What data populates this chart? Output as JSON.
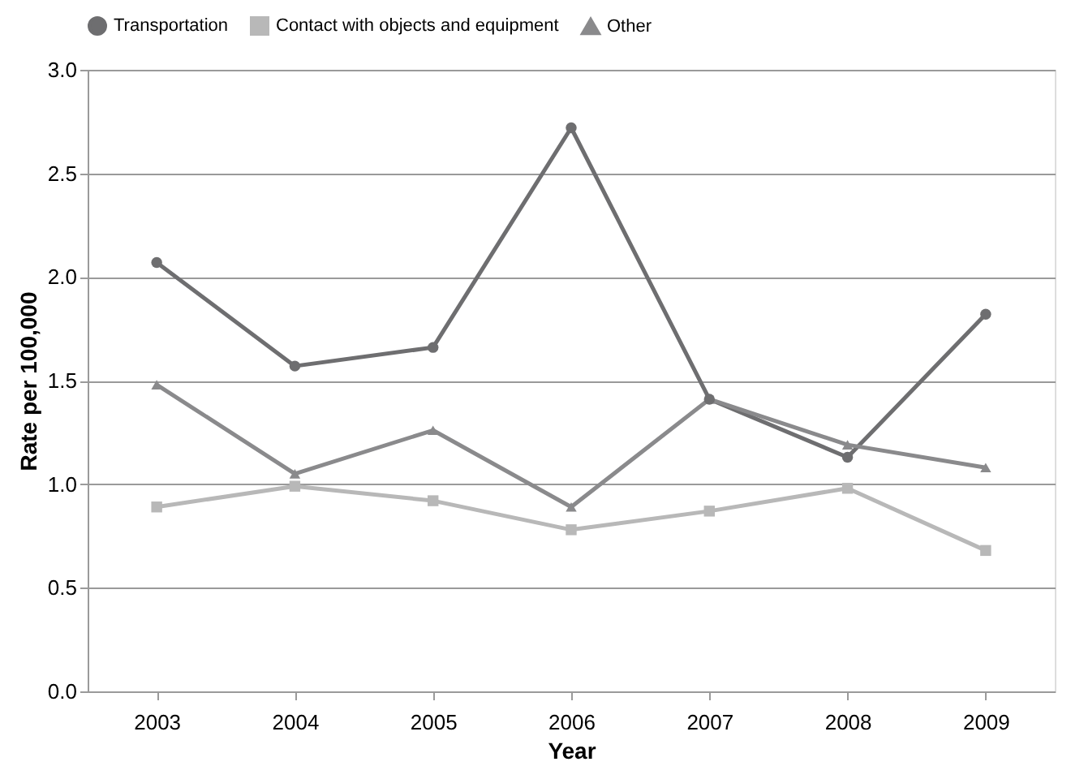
{
  "chart_data": {
    "type": "line",
    "xlabel": "Year",
    "ylabel": "Rate per 100,000",
    "categories": [
      "2003",
      "2004",
      "2005",
      "2006",
      "2007",
      "2008",
      "2009"
    ],
    "series": [
      {
        "name": "Transportation",
        "color": "#6e6e70",
        "marker": "circle",
        "values": [
          2.07,
          1.57,
          1.66,
          2.72,
          1.41,
          1.13,
          1.82
        ]
      },
      {
        "name": "Contact with objects and equipment",
        "color": "#b8b8b8",
        "marker": "square",
        "values": [
          0.89,
          0.99,
          0.92,
          0.78,
          0.87,
          0.98,
          0.68
        ]
      },
      {
        "name": "Other",
        "color": "#8a8a8c",
        "marker": "triangle",
        "values": [
          1.48,
          1.05,
          1.26,
          0.89,
          1.41,
          1.19,
          1.08
        ]
      }
    ],
    "ylim": [
      0,
      3
    ],
    "yticks": [
      {
        "value": 0,
        "label": "0.0"
      },
      {
        "value": 0.5,
        "label": "0.5"
      },
      {
        "value": 1,
        "label": "1.0"
      },
      {
        "value": 1.5,
        "label": "1.5"
      },
      {
        "value": 2,
        "label": "2.0"
      },
      {
        "value": 2.5,
        "label": "2.5"
      },
      {
        "value": 3,
        "label": "3.0"
      }
    ],
    "grid": "y",
    "legend": "top",
    "line_style": "solid"
  }
}
